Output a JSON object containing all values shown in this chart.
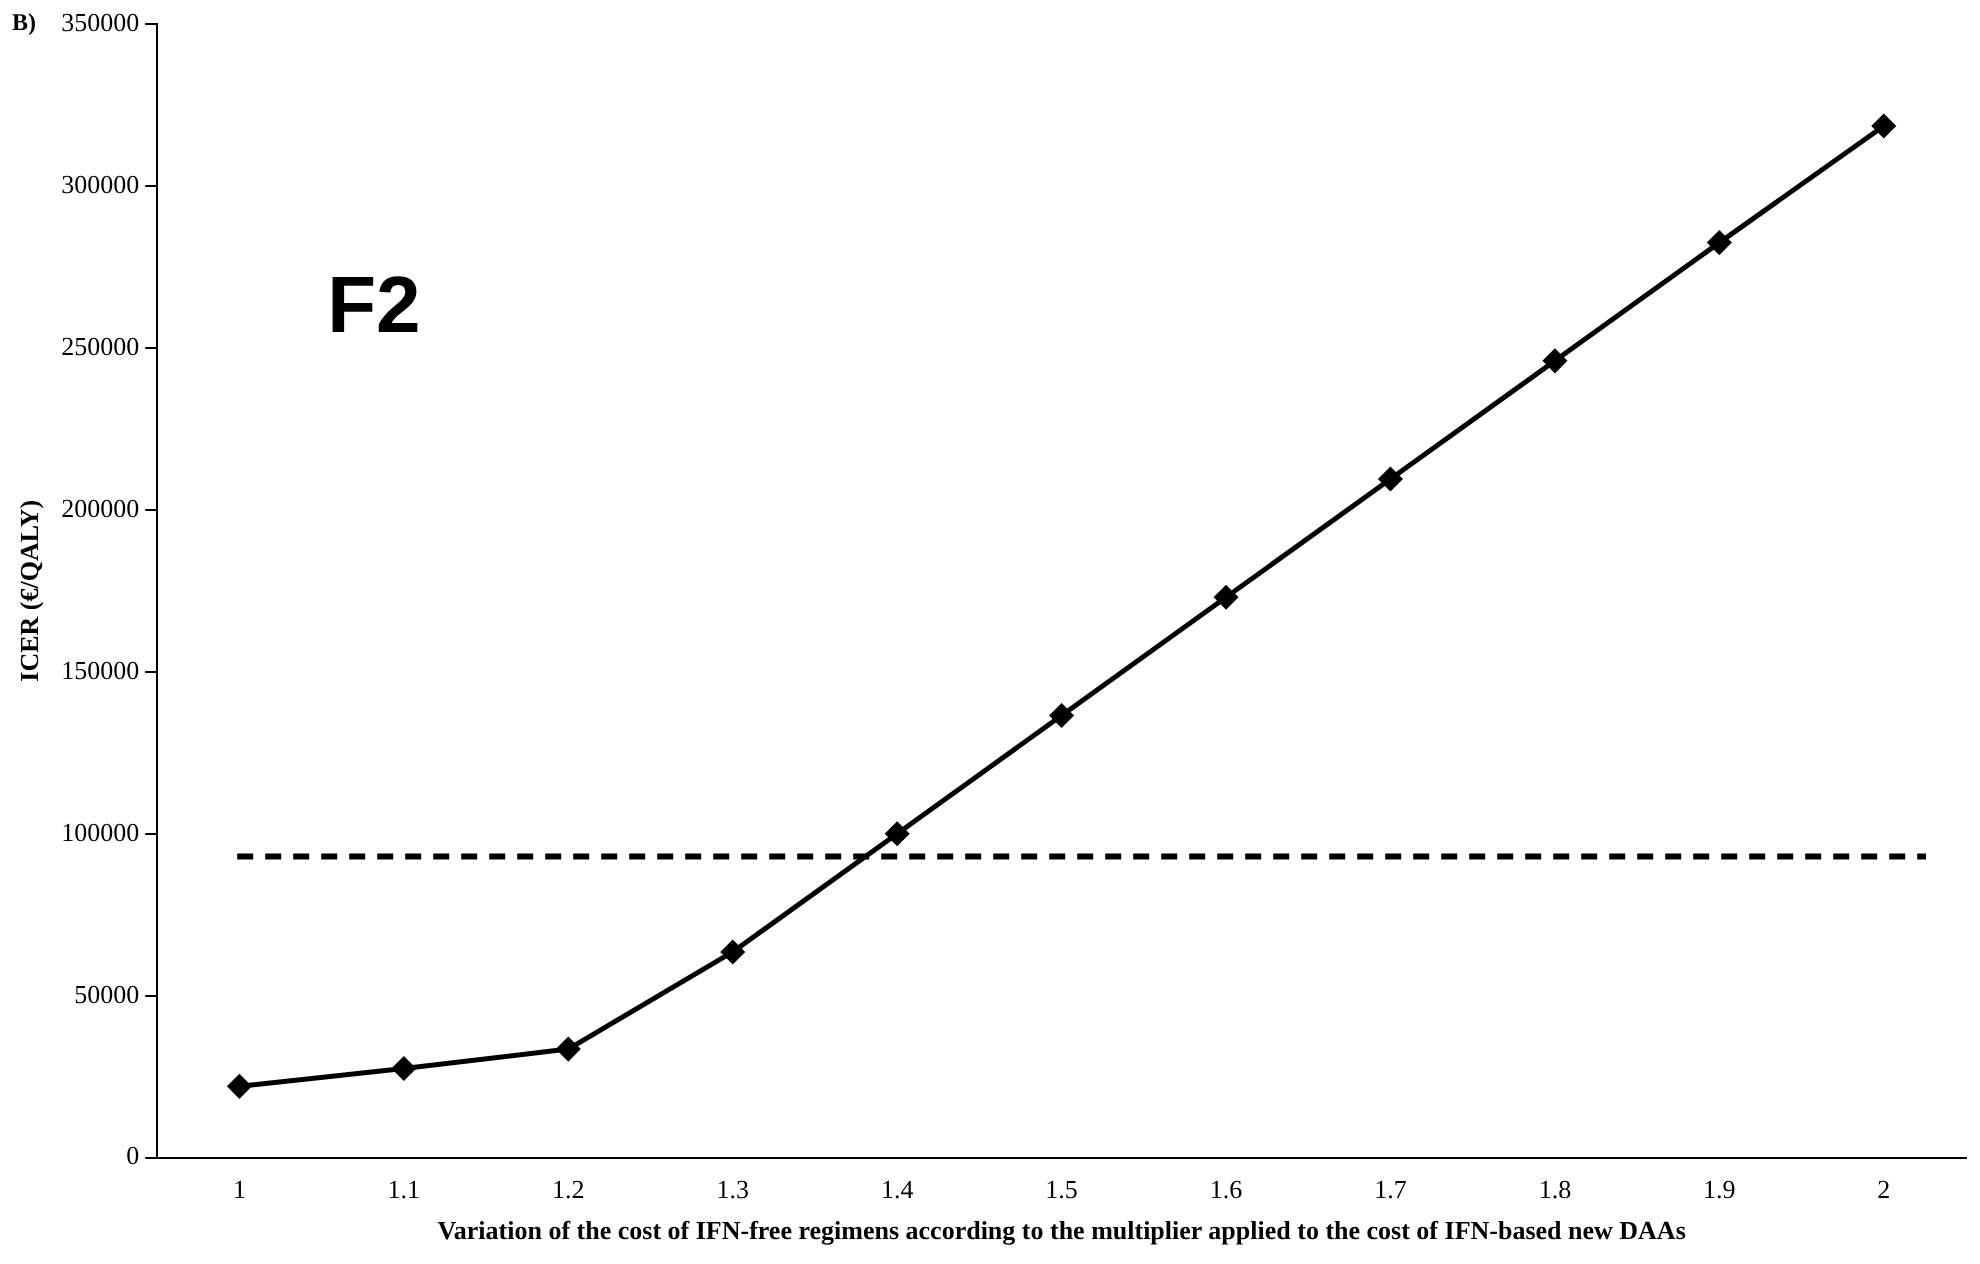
{
  "chart_data": {
    "type": "line",
    "xlabel": "Variation of the cost of IFN-free regimens according to the multiplier applied to the cost of IFN-based new DAAs",
    "ylabel": "ICER (€/QALY)",
    "categories": [
      "1",
      "1.1",
      "1.2",
      "1.3",
      "1.4",
      "1.5",
      "1.6",
      "1.7",
      "1.8",
      "1.9",
      "2"
    ],
    "series": [
      {
        "color": "#000000",
        "values": [
          22000,
          27500,
          33500,
          63500,
          100000,
          136500,
          173000,
          209500,
          246000,
          282500,
          318500
        ]
      }
    ],
    "ylim": [
      0,
      350000
    ],
    "yticks": [
      0,
      50000,
      100000,
      150000,
      200000,
      250000,
      300000,
      350000
    ],
    "ref_lines": [
      {
        "axis": "y",
        "value": 93000,
        "color": "#000000",
        "line_style": "dashed"
      }
    ],
    "annotations": [
      "B)",
      "F2"
    ],
    "grid": false,
    "legend": false,
    "marker": "diamond",
    "line_style": "solid"
  }
}
